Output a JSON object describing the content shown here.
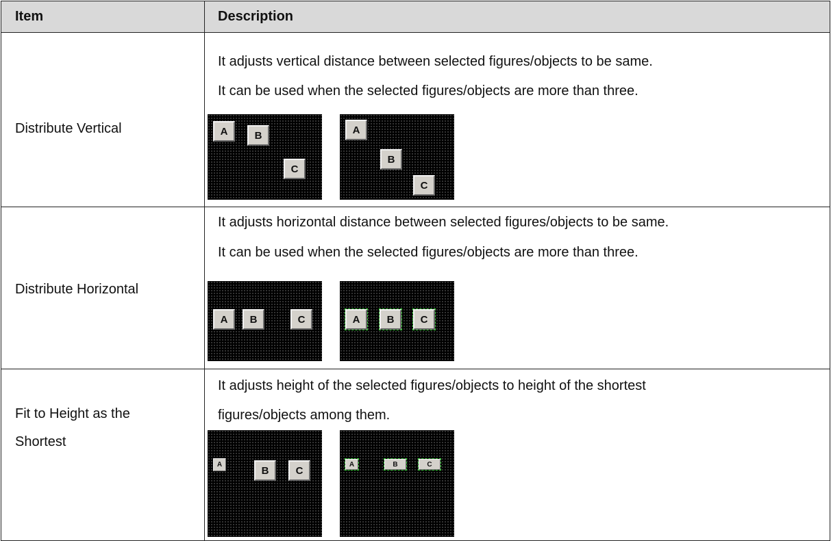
{
  "table": {
    "header": [
      "Item",
      "Description"
    ],
    "rows": [
      {
        "item": [
          "Distribute Vertical"
        ],
        "description": [
          "It adjusts vertical distance between selected figures/objects to be same.",
          "It can be used when the selected figures/objects are more than three."
        ],
        "figures": [
          [
            "A",
            "B",
            "C"
          ],
          [
            "A",
            "B",
            "C"
          ]
        ]
      },
      {
        "item": [
          "Distribute Horizontal"
        ],
        "description": [
          "It adjusts horizontal distance between selected figures/objects to be same.",
          "It can be used when the selected figures/objects are more than three."
        ],
        "figures": [
          [
            "A",
            "B",
            "C"
          ],
          [
            "A",
            "B",
            "C"
          ]
        ]
      },
      {
        "item": [
          "Fit to Height as the",
          "Shortest"
        ],
        "description": [
          "It adjusts height of the selected figures/objects to height of the shortest",
          "figures/objects among them."
        ],
        "figures": [
          [
            "A",
            "B",
            "C"
          ],
          [
            "A",
            "B",
            "C"
          ]
        ]
      }
    ]
  }
}
